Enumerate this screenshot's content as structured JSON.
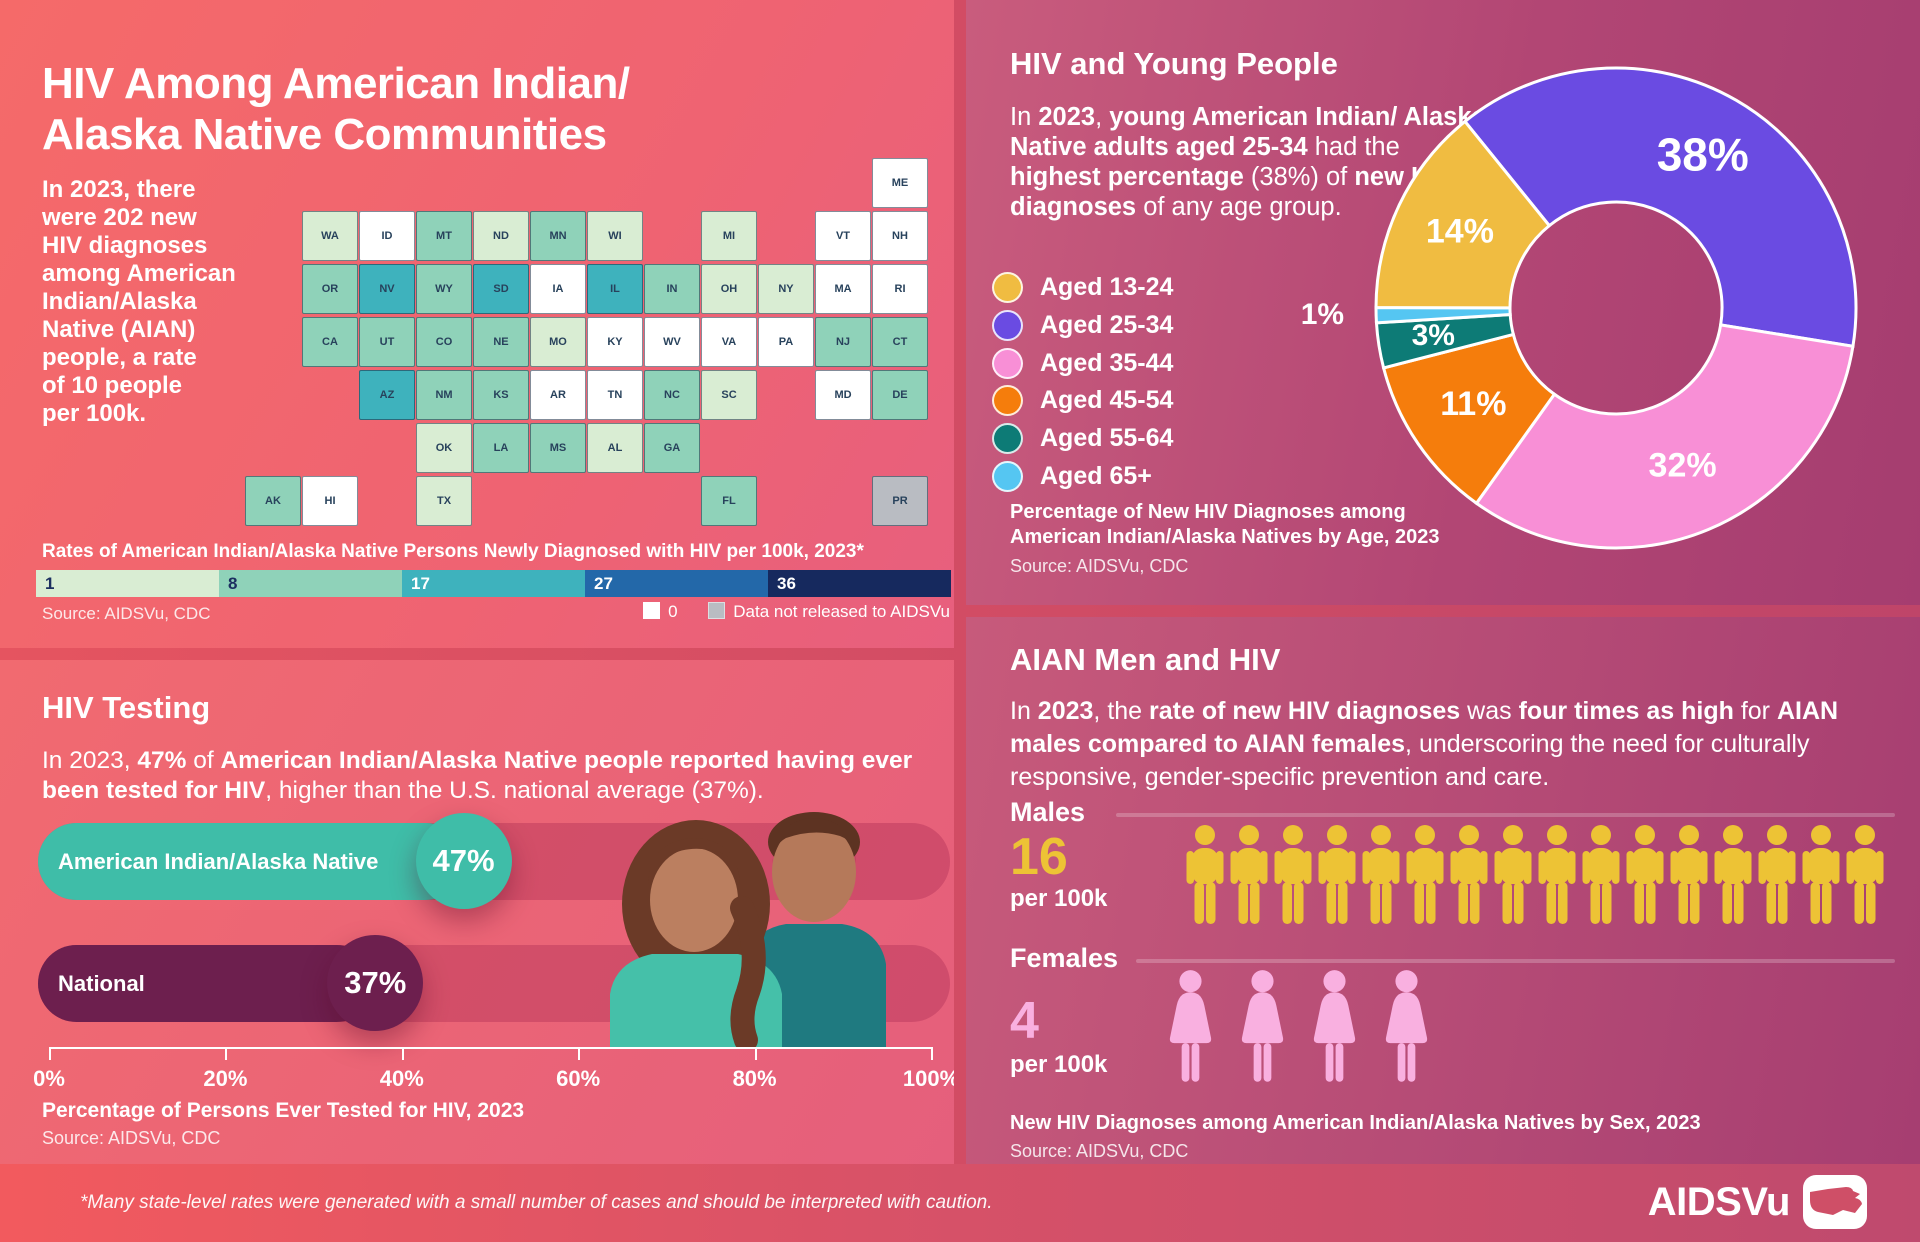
{
  "map_panel": {
    "title_lines": [
      "HIV Among American Indian/",
      "Alaska Native Communities"
    ],
    "intro_lines": [
      "In 2023, there",
      "were 202 new",
      "HIV diagnoses",
      "among American",
      "Indian/Alaska",
      "Native (AIAN)",
      "people, a rate",
      "of 10 people",
      "per 100k."
    ],
    "caption": "Rates of American Indian/Alaska Native Persons Newly Diagnosed with HIV per 100k, 2023*",
    "source": "Source: AIDSVu, CDC",
    "legend_bins": [
      {
        "label": "1",
        "color": "#d9edd3",
        "text": "#1c2f60"
      },
      {
        "label": "8",
        "color": "#8fd2b9",
        "text": "#1c2f60"
      },
      {
        "label": "17",
        "color": "#3eb2bd",
        "text": "#ffffff"
      },
      {
        "label": "27",
        "color": "#2368a9",
        "text": "#ffffff"
      },
      {
        "label": "36",
        "color": "#16295e",
        "text": "#ffffff"
      }
    ],
    "legend_extra": [
      {
        "label": "0",
        "color": "#ffffff"
      },
      {
        "label": "Data not released to AIDSVu",
        "color": "#b9bcc2"
      }
    ],
    "bin_colors": {
      "b1": "#d9edd3",
      "b8": "#8fd2b9",
      "b17": "#3eb2bd",
      "b27": "#2368a9",
      "b36": "#16295e",
      "zero": "#ffffff",
      "na": "#b9bcc2"
    },
    "states": [
      {
        "abbr": "AK",
        "col": 0,
        "row": 6,
        "cat": "b8"
      },
      {
        "abbr": "HI",
        "col": 1,
        "row": 6,
        "cat": "zero"
      },
      {
        "abbr": "ME",
        "col": 11,
        "row": 0,
        "cat": "zero"
      },
      {
        "abbr": "WA",
        "col": 1,
        "row": 1,
        "cat": "b1"
      },
      {
        "abbr": "ID",
        "col": 2,
        "row": 1,
        "cat": "zero"
      },
      {
        "abbr": "MT",
        "col": 3,
        "row": 1,
        "cat": "b8"
      },
      {
        "abbr": "ND",
        "col": 4,
        "row": 1,
        "cat": "b1"
      },
      {
        "abbr": "MN",
        "col": 5,
        "row": 1,
        "cat": "b8"
      },
      {
        "abbr": "WI",
        "col": 6,
        "row": 1,
        "cat": "b1"
      },
      {
        "abbr": "MI",
        "col": 8,
        "row": 1,
        "cat": "b1"
      },
      {
        "abbr": "VT",
        "col": 10,
        "row": 1,
        "cat": "zero"
      },
      {
        "abbr": "NH",
        "col": 11,
        "row": 1,
        "cat": "zero"
      },
      {
        "abbr": "OR",
        "col": 1,
        "row": 2,
        "cat": "b8"
      },
      {
        "abbr": "NV",
        "col": 2,
        "row": 2,
        "cat": "b17"
      },
      {
        "abbr": "WY",
        "col": 3,
        "row": 2,
        "cat": "b8"
      },
      {
        "abbr": "SD",
        "col": 4,
        "row": 2,
        "cat": "b17"
      },
      {
        "abbr": "IA",
        "col": 5,
        "row": 2,
        "cat": "zero"
      },
      {
        "abbr": "IL",
        "col": 6,
        "row": 2,
        "cat": "b17"
      },
      {
        "abbr": "IN",
        "col": 7,
        "row": 2,
        "cat": "b8"
      },
      {
        "abbr": "OH",
        "col": 8,
        "row": 2,
        "cat": "b1"
      },
      {
        "abbr": "NY",
        "col": 9,
        "row": 2,
        "cat": "b1"
      },
      {
        "abbr": "MA",
        "col": 10,
        "row": 2,
        "cat": "zero"
      },
      {
        "abbr": "RI",
        "col": 11,
        "row": 2,
        "cat": "zero"
      },
      {
        "abbr": "CA",
        "col": 1,
        "row": 3,
        "cat": "b8"
      },
      {
        "abbr": "UT",
        "col": 2,
        "row": 3,
        "cat": "b8"
      },
      {
        "abbr": "CO",
        "col": 3,
        "row": 3,
        "cat": "b8"
      },
      {
        "abbr": "NE",
        "col": 4,
        "row": 3,
        "cat": "b8"
      },
      {
        "abbr": "MO",
        "col": 5,
        "row": 3,
        "cat": "b1"
      },
      {
        "abbr": "KY",
        "col": 6,
        "row": 3,
        "cat": "zero"
      },
      {
        "abbr": "WV",
        "col": 7,
        "row": 3,
        "cat": "zero"
      },
      {
        "abbr": "VA",
        "col": 8,
        "row": 3,
        "cat": "zero"
      },
      {
        "abbr": "PA",
        "col": 9,
        "row": 3,
        "cat": "zero"
      },
      {
        "abbr": "NJ",
        "col": 10,
        "row": 3,
        "cat": "b8"
      },
      {
        "abbr": "CT",
        "col": 11,
        "row": 3,
        "cat": "b8"
      },
      {
        "abbr": "AZ",
        "col": 2,
        "row": 4,
        "cat": "b17"
      },
      {
        "abbr": "NM",
        "col": 3,
        "row": 4,
        "cat": "b8"
      },
      {
        "abbr": "KS",
        "col": 4,
        "row": 4,
        "cat": "b8"
      },
      {
        "abbr": "AR",
        "col": 5,
        "row": 4,
        "cat": "zero"
      },
      {
        "abbr": "TN",
        "col": 6,
        "row": 4,
        "cat": "zero"
      },
      {
        "abbr": "NC",
        "col": 7,
        "row": 4,
        "cat": "b8"
      },
      {
        "abbr": "SC",
        "col": 8,
        "row": 4,
        "cat": "b1"
      },
      {
        "abbr": "MD",
        "col": 10,
        "row": 4,
        "cat": "zero"
      },
      {
        "abbr": "DE",
        "col": 11,
        "row": 4,
        "cat": "b8"
      },
      {
        "abbr": "OK",
        "col": 3,
        "row": 5,
        "cat": "b1"
      },
      {
        "abbr": "LA",
        "col": 4,
        "row": 5,
        "cat": "b8"
      },
      {
        "abbr": "MS",
        "col": 5,
        "row": 5,
        "cat": "b8"
      },
      {
        "abbr": "AL",
        "col": 6,
        "row": 5,
        "cat": "b1"
      },
      {
        "abbr": "GA",
        "col": 7,
        "row": 5,
        "cat": "b8"
      },
      {
        "abbr": "TX",
        "col": 3,
        "row": 6,
        "cat": "b1"
      },
      {
        "abbr": "FL",
        "col": 8,
        "row": 6,
        "cat": "b8"
      },
      {
        "abbr": "PR",
        "col": 11,
        "row": 6,
        "cat": "na"
      }
    ]
  },
  "age_panel": {
    "heading": "HIV and Young People",
    "paragraph": [
      {
        "t": "In "
      },
      {
        "t": "2023",
        "b": true
      },
      {
        "t": ", "
      },
      {
        "t": "young American Indian/ Alaska Native adults aged 25-34",
        "b": true
      },
      {
        "t": " had the "
      },
      {
        "t": "highest percentage",
        "b": true
      },
      {
        "t": " (38%) of "
      },
      {
        "t": "new HIV diagnoses",
        "b": true
      },
      {
        "t": " of any age group."
      }
    ],
    "legend": [
      {
        "label": "Aged 13-24",
        "color": "#f0bc41"
      },
      {
        "label": "Aged 25-34",
        "color": "#6a4be2"
      },
      {
        "label": "Aged 35-44",
        "color": "#f88fd6"
      },
      {
        "label": "Aged 45-54",
        "color": "#f57d0c"
      },
      {
        "label": "Aged 55-64",
        "color": "#0d7b76"
      },
      {
        "label": "Aged 65+",
        "color": "#55c6f2"
      }
    ],
    "caption_lines": [
      "Percentage of New HIV Diagnoses among",
      "American Indian/Alaska Natives by Age, 2023"
    ],
    "source": "Source: AIDSVu, CDC"
  },
  "testing_panel": {
    "heading": "HIV Testing",
    "paragraph": [
      {
        "t": "In 2023, "
      },
      {
        "t": "47%",
        "b": true
      },
      {
        "t": " of "
      },
      {
        "t": "American Indian/Alaska Native people reported having ever been tested for HIV",
        "b": true
      },
      {
        "t": ", higher than the U.S. national average (37%)."
      }
    ],
    "bars": [
      {
        "label": "American Indian/Alaska Native",
        "value": 47,
        "value_label": "47%",
        "color": "#3fbda8"
      },
      {
        "label": "National",
        "value": 37,
        "value_label": "37%",
        "color": "#6d1f4e"
      }
    ],
    "axis_ticks": [
      "0%",
      "20%",
      "40%",
      "60%",
      "80%",
      "100%"
    ],
    "caption": "Percentage of Persons Ever Tested for HIV, 2023",
    "source": "Source: AIDSVu, CDC"
  },
  "sex_panel": {
    "heading": "AIAN Men and HIV",
    "paragraph": [
      {
        "t": "In "
      },
      {
        "t": "2023",
        "b": true
      },
      {
        "t": ", the "
      },
      {
        "t": "rate of new HIV diagnoses",
        "b": true
      },
      {
        "t": " was "
      },
      {
        "t": "four times as high",
        "b": true
      },
      {
        "t": " for "
      },
      {
        "t": "AIAN males compared to AIAN females",
        "b": true
      },
      {
        "t": ", underscoring the need for culturally responsive, gender-specific prevention and care."
      }
    ],
    "groups": [
      {
        "label": "Males",
        "value": 16,
        "value_label": "16",
        "unit": "per 100k",
        "color": "#edc335"
      },
      {
        "label": "Females",
        "value": 4,
        "value_label": "4",
        "unit": "per 100k",
        "color": "#f9b0e0"
      }
    ],
    "caption": "New HIV Diagnoses among American Indian/Alaska Natives by Sex, 2023",
    "source": "Source: AIDSVu, CDC"
  },
  "footer": {
    "note": "*Many state-level rates were generated with a small number of cases and should be interpreted with caution.",
    "logo_text": "AIDSVu"
  },
  "chart_data": [
    {
      "type": "pie",
      "title": "Percentage of New HIV Diagnoses among American Indian/Alaska Natives by Age, 2023",
      "categories": [
        "Aged 13-24",
        "Aged 25-34",
        "Aged 35-44",
        "Aged 45-54",
        "Aged 55-64",
        "Aged 65+"
      ],
      "values": [
        14,
        38,
        32,
        11,
        3,
        1
      ],
      "labels": [
        "14%",
        "38%",
        "32%",
        "11%",
        "3%",
        "1%"
      ],
      "colors": [
        "#f0bc41",
        "#6a4be2",
        "#f88fd6",
        "#f57d0c",
        "#0d7b76",
        "#55c6f2"
      ],
      "donut": true,
      "legend_position": "left"
    },
    {
      "type": "choropleth",
      "title": "Rates of American Indian/Alaska Native Persons Newly Diagnosed with HIV per 100k, 2023*",
      "legend_bins": [
        1,
        8,
        17,
        27,
        36
      ],
      "special_bins": [
        "0",
        "Data not released to AIDSVu"
      ],
      "state_bins": {
        "WA": 1,
        "ND": 1,
        "WI": 1,
        "MI": 1,
        "MO": 1,
        "OK": 1,
        "TX": 1,
        "AL": 1,
        "OH": 1,
        "NY": 1,
        "SC": 1,
        "AK": 8,
        "OR": 8,
        "CA": 8,
        "MT": 8,
        "MN": 8,
        "WY": 8,
        "NE": 8,
        "UT": 8,
        "CO": 8,
        "KS": 8,
        "NM": 8,
        "LA": 8,
        "MS": 8,
        "IN": 8,
        "NC": 8,
        "GA": 8,
        "FL": 8,
        "CT": 8,
        "NJ": 8,
        "DE": 8,
        "SD": 17,
        "NV": 17,
        "AZ": 17,
        "IL": 17,
        "ID": 0,
        "IA": 0,
        "AR": 0,
        "KY": 0,
        "TN": 0,
        "WV": 0,
        "VA": 0,
        "PA": 0,
        "VT": 0,
        "NH": 0,
        "ME": 0,
        "MA": 0,
        "MD": 0,
        "RI": 0,
        "HI": 0,
        "PR": "not released"
      }
    },
    {
      "type": "bar",
      "title": "Percentage of Persons Ever Tested for HIV, 2023",
      "categories": [
        "American Indian/Alaska Native",
        "National"
      ],
      "values": [
        47,
        37
      ],
      "xlabel": "",
      "ylabel": "",
      "xlim": [
        0,
        100
      ],
      "tick_labels": [
        "0%",
        "20%",
        "40%",
        "60%",
        "80%",
        "100%"
      ]
    },
    {
      "type": "pictograph",
      "title": "New HIV Diagnoses among American Indian/Alaska Natives by Sex, 2023",
      "categories": [
        "Males",
        "Females"
      ],
      "values": [
        16,
        4
      ],
      "unit": "per 100k"
    }
  ]
}
